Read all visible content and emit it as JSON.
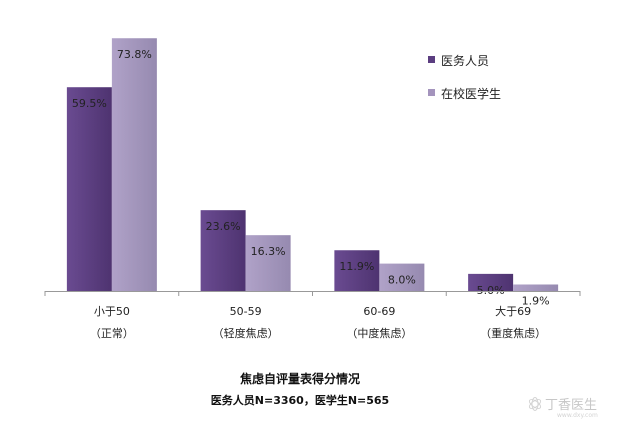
{
  "chart_data": {
    "type": "bar",
    "categories": [
      {
        "line1": "小于50",
        "line2": "（正常）"
      },
      {
        "line1": "50-59",
        "line2": "（轻度焦虑）"
      },
      {
        "line1": "60-69",
        "line2": "（中度焦虑）"
      },
      {
        "line1": "大于69",
        "line2": "（重度焦虑）"
      }
    ],
    "series": [
      {
        "name": "医务人员",
        "color": "#5b3d80",
        "values": [
          59.5,
          23.6,
          11.9,
          5.0
        ],
        "labels": [
          "59.5%",
          "23.6%",
          "11.9%",
          "5.0%"
        ]
      },
      {
        "name": "在校医学生",
        "color": "#a494bd",
        "values": [
          73.8,
          16.3,
          8.0,
          1.9
        ],
        "labels": [
          "73.8%",
          "16.3%",
          "8.0%",
          "1.9%"
        ]
      }
    ],
    "ylim": [
      0,
      80
    ],
    "grid": false,
    "legend": "top-right",
    "caption": {
      "title": "焦虑自评量表得分情况",
      "subtitle": "医务人员N=3360，医学生N=565"
    }
  },
  "watermark": {
    "text": "丁香医生",
    "url": "www.dxy.com"
  }
}
